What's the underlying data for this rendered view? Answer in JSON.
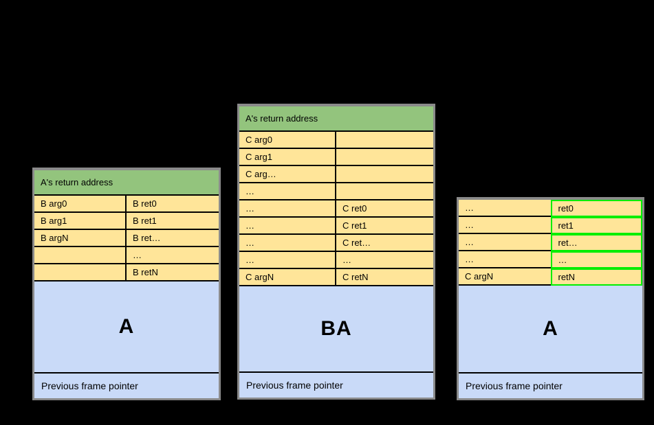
{
  "colors": {
    "background": "#000000",
    "header_green": "#93c47d",
    "cell_yellow": "#ffe599",
    "frame_blue": "#c9daf8",
    "highlight_green": "#00ee00",
    "outer_border_gray": "#8a8a8a",
    "line_black": "#000000"
  },
  "tables": [
    {
      "header": "A's return address",
      "rows": [
        {
          "left": "B arg0",
          "right": "B ret0",
          "highlight": false
        },
        {
          "left": "B arg1",
          "right": "B ret1",
          "highlight": false
        },
        {
          "left": "B argN",
          "right": "B ret…",
          "highlight": false
        },
        {
          "left": "",
          "right": "…",
          "highlight": false
        },
        {
          "left": "",
          "right": "B retN",
          "highlight": false
        }
      ],
      "frame_label": "A",
      "footer": "Previous frame pointer"
    },
    {
      "header": "A's return address",
      "rows": [
        {
          "left": "C arg0",
          "right": "",
          "highlight": false
        },
        {
          "left": "C arg1",
          "right": "",
          "highlight": false
        },
        {
          "left": "C arg…",
          "right": "",
          "highlight": false
        },
        {
          "left": "…",
          "right": "",
          "highlight": false
        },
        {
          "left": "…",
          "right": "C ret0",
          "highlight": false
        },
        {
          "left": "…",
          "right": "C ret1",
          "highlight": false
        },
        {
          "left": "…",
          "right": "C ret…",
          "highlight": false
        },
        {
          "left": "…",
          "right": "…",
          "highlight": false
        },
        {
          "left": "C argN",
          "right": "C retN",
          "highlight": false
        }
      ],
      "frame_label": "BA",
      "footer": "Previous frame pointer"
    },
    {
      "header": null,
      "rows": [
        {
          "left": "…",
          "right": "ret0",
          "highlight": true
        },
        {
          "left": "…",
          "right": "ret1",
          "highlight": true
        },
        {
          "left": "…",
          "right": "ret…",
          "highlight": true
        },
        {
          "left": "…",
          "right": "…",
          "highlight": true
        },
        {
          "left": "C argN",
          "right": "retN",
          "highlight": true
        }
      ],
      "frame_label": "A",
      "footer": "Previous frame pointer"
    }
  ]
}
